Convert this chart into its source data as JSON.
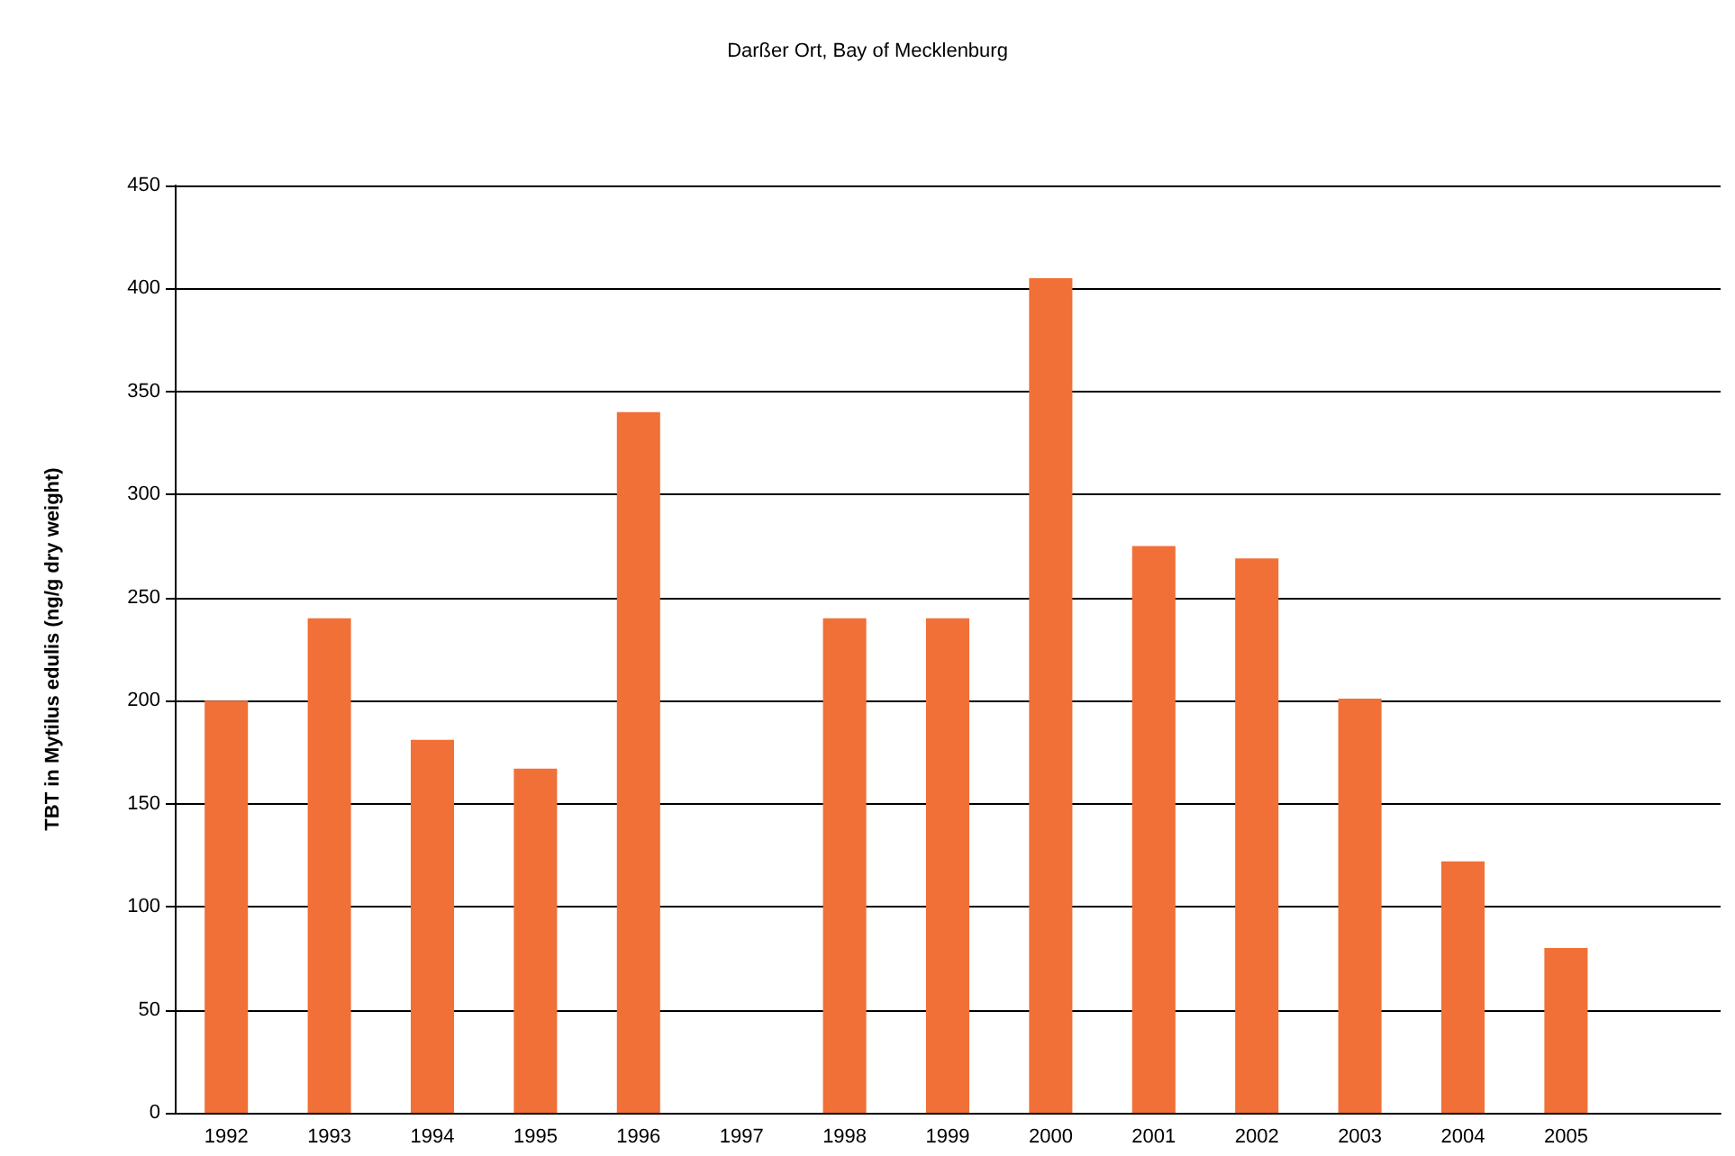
{
  "chart_data": {
    "type": "bar",
    "title": "Darßer Ort, Bay of Mecklenburg",
    "ylabel": "TBT in Mytilus edulis (ng/g dry weight)",
    "categories": [
      "1992",
      "1993",
      "1994",
      "1995",
      "1996",
      "1997",
      "1998",
      "1999",
      "2000",
      "2001",
      "2002",
      "2003",
      "2004",
      "2005",
      null
    ],
    "values": [
      200,
      240,
      181,
      167,
      340,
      null,
      240,
      240,
      405,
      275,
      269,
      201,
      122,
      80,
      null
    ],
    "color": "#f07038",
    "ylim": [
      0,
      450
    ],
    "yticks": [
      0,
      50,
      100,
      150,
      200,
      250,
      300,
      350,
      400,
      450
    ],
    "grid": "y"
  }
}
